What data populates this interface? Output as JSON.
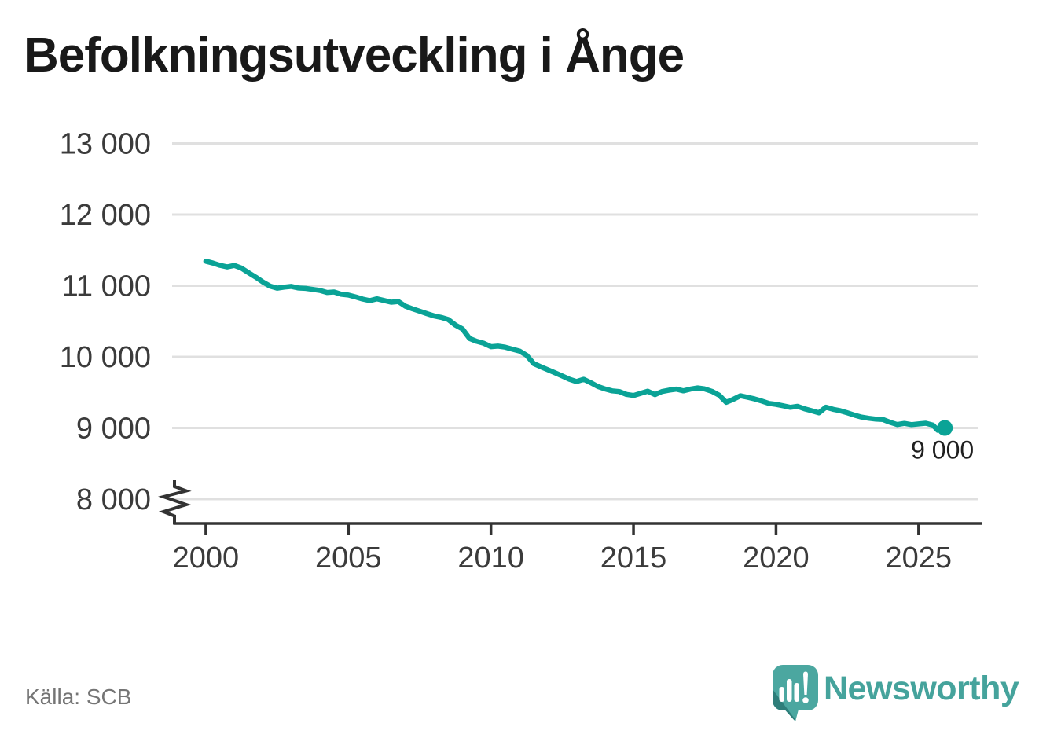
{
  "title": "Befolkningsutveckling i Ånge",
  "source": "Källa: SCB",
  "branding": {
    "name": "Newsworthy",
    "logo_icon": "speech-bubble-bar-chart-exclamation-icon"
  },
  "colors": {
    "line": "#0aa396",
    "grid": "#e0e0e0",
    "axis": "#333333",
    "tick_text": "#3b3b3b",
    "title_text": "#191919",
    "source_text": "#757575",
    "brand_teal": "#45a39c",
    "icon_fill": "#4ba7a0",
    "icon_shade": "#2e7e7a"
  },
  "chart_data": {
    "type": "line",
    "title": "Befolkningsutveckling i Ånge",
    "xlabel": "",
    "ylabel": "",
    "grid": "horizontal",
    "axis_break_at_bottom": true,
    "x_domain": [
      1998.9,
      2027.1
    ],
    "y_domain": [
      8000,
      13000
    ],
    "x_ticks": [
      2000,
      2005,
      2010,
      2015,
      2020,
      2025
    ],
    "x_tick_labels": [
      "2000",
      "2005",
      "2010",
      "2015",
      "2020",
      "2025"
    ],
    "y_ticks": [
      8000,
      9000,
      10000,
      11000,
      12000,
      13000
    ],
    "y_tick_labels": [
      "8 000",
      "9 000",
      "10 000",
      "11 000",
      "12 000",
      "13 000"
    ],
    "end_point": [
      2025.92,
      9000
    ],
    "end_label": "9 000",
    "series": [
      {
        "name": "Befolkning",
        "points": [
          [
            2000.0,
            11345
          ],
          [
            2000.25,
            11318
          ],
          [
            2000.5,
            11286
          ],
          [
            2000.75,
            11264
          ],
          [
            2001.0,
            11285
          ],
          [
            2001.25,
            11248
          ],
          [
            2001.5,
            11182
          ],
          [
            2001.75,
            11120
          ],
          [
            2002.0,
            11052
          ],
          [
            2002.25,
            10995
          ],
          [
            2002.5,
            10966
          ],
          [
            2002.75,
            10980
          ],
          [
            2003.0,
            10990
          ],
          [
            2003.25,
            10968
          ],
          [
            2003.5,
            10962
          ],
          [
            2003.75,
            10948
          ],
          [
            2004.0,
            10934
          ],
          [
            2004.25,
            10905
          ],
          [
            2004.5,
            10912
          ],
          [
            2004.75,
            10880
          ],
          [
            2005.0,
            10868
          ],
          [
            2005.25,
            10842
          ],
          [
            2005.5,
            10812
          ],
          [
            2005.75,
            10790
          ],
          [
            2006.0,
            10816
          ],
          [
            2006.25,
            10792
          ],
          [
            2006.5,
            10768
          ],
          [
            2006.75,
            10778
          ],
          [
            2007.0,
            10712
          ],
          [
            2007.25,
            10675
          ],
          [
            2007.5,
            10642
          ],
          [
            2007.75,
            10608
          ],
          [
            2008.0,
            10576
          ],
          [
            2008.25,
            10555
          ],
          [
            2008.5,
            10525
          ],
          [
            2008.75,
            10448
          ],
          [
            2009.0,
            10392
          ],
          [
            2009.25,
            10258
          ],
          [
            2009.5,
            10218
          ],
          [
            2009.75,
            10190
          ],
          [
            2010.0,
            10142
          ],
          [
            2010.25,
            10150
          ],
          [
            2010.5,
            10136
          ],
          [
            2010.75,
            10108
          ],
          [
            2011.0,
            10082
          ],
          [
            2011.25,
            10022
          ],
          [
            2011.5,
            9905
          ],
          [
            2011.75,
            9860
          ],
          [
            2012.0,
            9818
          ],
          [
            2012.25,
            9775
          ],
          [
            2012.5,
            9730
          ],
          [
            2012.75,
            9685
          ],
          [
            2013.0,
            9652
          ],
          [
            2013.25,
            9684
          ],
          [
            2013.5,
            9636
          ],
          [
            2013.75,
            9582
          ],
          [
            2014.0,
            9548
          ],
          [
            2014.25,
            9522
          ],
          [
            2014.5,
            9512
          ],
          [
            2014.75,
            9472
          ],
          [
            2015.0,
            9456
          ],
          [
            2015.25,
            9486
          ],
          [
            2015.5,
            9516
          ],
          [
            2015.75,
            9468
          ],
          [
            2016.0,
            9512
          ],
          [
            2016.25,
            9532
          ],
          [
            2016.5,
            9546
          ],
          [
            2016.75,
            9522
          ],
          [
            2017.0,
            9546
          ],
          [
            2017.25,
            9562
          ],
          [
            2017.5,
            9548
          ],
          [
            2017.75,
            9515
          ],
          [
            2018.0,
            9462
          ],
          [
            2018.25,
            9360
          ],
          [
            2018.5,
            9402
          ],
          [
            2018.75,
            9452
          ],
          [
            2019.0,
            9431
          ],
          [
            2019.25,
            9408
          ],
          [
            2019.5,
            9378
          ],
          [
            2019.75,
            9345
          ],
          [
            2020.0,
            9332
          ],
          [
            2020.25,
            9312
          ],
          [
            2020.5,
            9290
          ],
          [
            2020.75,
            9304
          ],
          [
            2021.0,
            9268
          ],
          [
            2021.25,
            9242
          ],
          [
            2021.5,
            9212
          ],
          [
            2021.75,
            9292
          ],
          [
            2022.0,
            9262
          ],
          [
            2022.25,
            9242
          ],
          [
            2022.5,
            9212
          ],
          [
            2022.75,
            9180
          ],
          [
            2023.0,
            9152
          ],
          [
            2023.25,
            9136
          ],
          [
            2023.5,
            9124
          ],
          [
            2023.75,
            9118
          ],
          [
            2024.0,
            9080
          ],
          [
            2024.25,
            9048
          ],
          [
            2024.5,
            9064
          ],
          [
            2024.75,
            9046
          ],
          [
            2025.0,
            9056
          ],
          [
            2025.25,
            9066
          ],
          [
            2025.5,
            9040
          ],
          [
            2025.67,
            8968
          ],
          [
            2025.83,
            9010
          ],
          [
            2025.92,
            9000
          ]
        ]
      }
    ]
  }
}
